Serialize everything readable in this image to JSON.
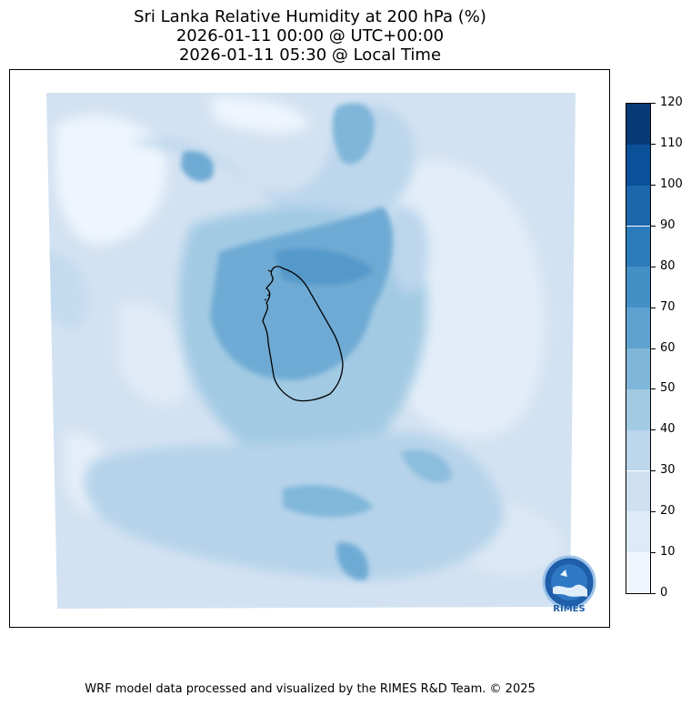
{
  "title": {
    "line1": "Sri Lanka Relative Humidity at 200 hPa (%)",
    "line2": "2026-01-11 00:00 @ UTC+00:00",
    "line3": "2026-01-11 05:30 @ Local Time"
  },
  "chart_data": {
    "type": "heatmap",
    "variable": "Relative Humidity at 200 hPa (%)",
    "colorbar": {
      "ticks": [
        0,
        10,
        20,
        30,
        40,
        50,
        60,
        70,
        80,
        90,
        100,
        110,
        120
      ],
      "colors": [
        "#f0f6fd",
        "#deeaf7",
        "#cfe0f2",
        "#bcd6ec",
        "#a2cae3",
        "#7fb6d9",
        "#5fa2cf",
        "#4290c6",
        "#2c7cbb",
        "#1a67ac",
        "#0a519a",
        "#083a78"
      ]
    }
  },
  "logo": {
    "text": "RIMES"
  },
  "footer": "WRF model data processed and visualized by the RIMES R&D Team. © 2025"
}
